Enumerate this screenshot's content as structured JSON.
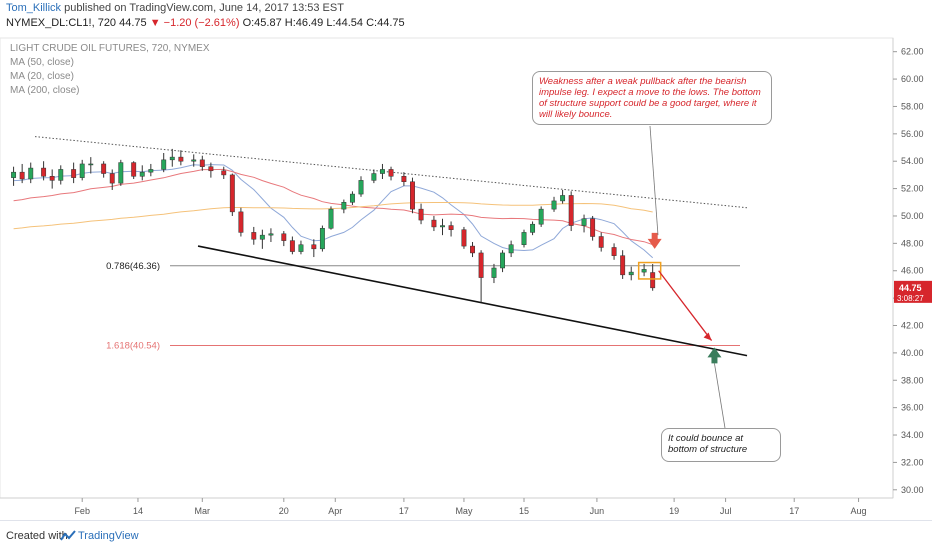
{
  "header": {
    "author": "Tom_Killick",
    "published": "published on TradingView.com, June 14, 2017 13:53 EST",
    "symbol": "NYMEX_DL:CL1!, 720",
    "last": "44.75",
    "change": "▼ −1.20 (−2.61%)",
    "ohlc": "O:45.87 H:46.49 L:44.54 C:44.75"
  },
  "legend": {
    "title": "LIGHT CRUDE OIL FUTURES, 720, NYMEX",
    "ma50": "MA (50, close)",
    "ma20": "MA (20, close)",
    "ma200": "MA (200, close)"
  },
  "annotations": {
    "top_note": "Weakness after a weak pullback after the bearish impulse leg. I expect a move to the lows. The bottom of structure support could be a good target, where it will likely bounce.",
    "bottom_note": "It could bounce at bottom of structure",
    "fib_786": "0.786(46.36)",
    "fib_1618": "1.618(40.54)"
  },
  "price_badge": {
    "price": "44.75",
    "countdown": "3:08:27",
    "color": "#d6262c"
  },
  "footer": {
    "created": "Created with",
    "brand": "TradingView"
  },
  "colors": {
    "up": "#26a65b",
    "down": "#d6262c",
    "ma20": "#8fa8d8",
    "ma50": "#e8787c",
    "ma200": "#f5c27a",
    "fib_1618": "#e57373",
    "fib_786": "#888888"
  },
  "chart_data": {
    "type": "candlestick",
    "y_axis": {
      "ylim": [
        29.4,
        63.0
      ],
      "ticks": [
        "62.00",
        "60.00",
        "58.00",
        "56.00",
        "54.00",
        "52.00",
        "50.00",
        "48.00",
        "46.00",
        "44.00",
        "42.00",
        "40.00",
        "38.00",
        "36.00",
        "34.00",
        "32.00",
        "30.00"
      ]
    },
    "x_axis": {
      "ticks": [
        "Feb",
        "14",
        "Mar",
        "20",
        "Apr",
        "17",
        "May",
        "15",
        "Jun",
        "19",
        "Jul",
        "17",
        "Aug"
      ]
    },
    "levels": [
      {
        "name": "0.786(46.36)",
        "value": 46.36
      },
      {
        "name": "1.618(40.54)",
        "value": 40.54
      }
    ],
    "trendlines": [
      {
        "name": "upper",
        "from": [
          "2017-01-21",
          55.8
        ],
        "to": [
          "2017-07-06",
          50.6
        ]
      },
      {
        "name": "lower",
        "from": [
          "2017-02-28",
          47.8
        ],
        "to": [
          "2017-07-06",
          39.8
        ]
      }
    ],
    "candles": [
      {
        "date": "2017-01-16",
        "o": 52.8,
        "h": 53.6,
        "l": 52.2,
        "c": 53.2
      },
      {
        "date": "2017-01-18",
        "o": 53.2,
        "h": 53.8,
        "l": 52.4,
        "c": 52.7
      },
      {
        "date": "2017-01-20",
        "o": 52.7,
        "h": 53.9,
        "l": 52.4,
        "c": 53.5
      },
      {
        "date": "2017-01-23",
        "o": 53.5,
        "h": 54.0,
        "l": 52.6,
        "c": 52.9
      },
      {
        "date": "2017-01-25",
        "o": 52.9,
        "h": 53.4,
        "l": 52.0,
        "c": 52.6
      },
      {
        "date": "2017-01-27",
        "o": 52.6,
        "h": 53.7,
        "l": 52.3,
        "c": 53.4
      },
      {
        "date": "2017-01-30",
        "o": 53.4,
        "h": 53.9,
        "l": 52.4,
        "c": 52.8
      },
      {
        "date": "2017-02-01",
        "o": 52.8,
        "h": 54.1,
        "l": 52.6,
        "c": 53.8
      },
      {
        "date": "2017-02-03",
        "o": 53.8,
        "h": 54.3,
        "l": 53.1,
        "c": 53.8
      },
      {
        "date": "2017-02-06",
        "o": 53.8,
        "h": 54.0,
        "l": 52.8,
        "c": 53.1
      },
      {
        "date": "2017-02-08",
        "o": 53.1,
        "h": 53.4,
        "l": 51.9,
        "c": 52.4
      },
      {
        "date": "2017-02-10",
        "o": 52.4,
        "h": 54.1,
        "l": 52.2,
        "c": 53.9
      },
      {
        "date": "2017-02-13",
        "o": 53.9,
        "h": 54.0,
        "l": 52.7,
        "c": 52.9
      },
      {
        "date": "2017-02-15",
        "o": 52.9,
        "h": 53.7,
        "l": 52.6,
        "c": 53.2
      },
      {
        "date": "2017-02-17",
        "o": 53.2,
        "h": 53.8,
        "l": 52.9,
        "c": 53.4
      },
      {
        "date": "2017-02-20",
        "o": 53.4,
        "h": 54.6,
        "l": 53.2,
        "c": 54.1
      },
      {
        "date": "2017-02-22",
        "o": 54.1,
        "h": 54.9,
        "l": 53.6,
        "c": 54.3
      },
      {
        "date": "2017-02-24",
        "o": 54.3,
        "h": 54.8,
        "l": 53.7,
        "c": 54.0
      },
      {
        "date": "2017-02-27",
        "o": 54.0,
        "h": 54.5,
        "l": 53.6,
        "c": 54.1
      },
      {
        "date": "2017-03-01",
        "o": 54.1,
        "h": 54.4,
        "l": 53.3,
        "c": 53.6
      },
      {
        "date": "2017-03-03",
        "o": 53.6,
        "h": 53.9,
        "l": 52.8,
        "c": 53.3
      },
      {
        "date": "2017-03-06",
        "o": 53.3,
        "h": 53.6,
        "l": 52.7,
        "c": 53.0
      },
      {
        "date": "2017-03-08",
        "o": 53.0,
        "h": 53.1,
        "l": 50.0,
        "c": 50.3
      },
      {
        "date": "2017-03-10",
        "o": 50.3,
        "h": 50.6,
        "l": 48.5,
        "c": 48.8
      },
      {
        "date": "2017-03-13",
        "o": 48.8,
        "h": 49.2,
        "l": 47.9,
        "c": 48.3
      },
      {
        "date": "2017-03-15",
        "o": 48.3,
        "h": 49.0,
        "l": 47.6,
        "c": 48.6
      },
      {
        "date": "2017-03-17",
        "o": 48.6,
        "h": 49.1,
        "l": 48.1,
        "c": 48.7
      },
      {
        "date": "2017-03-20",
        "o": 48.7,
        "h": 48.9,
        "l": 47.8,
        "c": 48.2
      },
      {
        "date": "2017-03-22",
        "o": 48.2,
        "h": 48.5,
        "l": 47.2,
        "c": 47.4
      },
      {
        "date": "2017-03-24",
        "o": 47.4,
        "h": 48.2,
        "l": 47.2,
        "c": 47.9
      },
      {
        "date": "2017-03-27",
        "o": 47.9,
        "h": 48.3,
        "l": 47.0,
        "c": 47.6
      },
      {
        "date": "2017-03-29",
        "o": 47.6,
        "h": 49.3,
        "l": 47.4,
        "c": 49.1
      },
      {
        "date": "2017-03-31",
        "o": 49.1,
        "h": 50.7,
        "l": 49.0,
        "c": 50.5
      },
      {
        "date": "2017-04-03",
        "o": 50.5,
        "h": 51.2,
        "l": 50.2,
        "c": 51.0
      },
      {
        "date": "2017-04-05",
        "o": 51.0,
        "h": 51.8,
        "l": 50.8,
        "c": 51.6
      },
      {
        "date": "2017-04-07",
        "o": 51.6,
        "h": 52.9,
        "l": 51.4,
        "c": 52.6
      },
      {
        "date": "2017-04-10",
        "o": 52.6,
        "h": 53.4,
        "l": 52.4,
        "c": 53.1
      },
      {
        "date": "2017-04-12",
        "o": 53.1,
        "h": 53.8,
        "l": 52.7,
        "c": 53.4
      },
      {
        "date": "2017-04-14",
        "o": 53.4,
        "h": 53.6,
        "l": 52.6,
        "c": 52.9
      },
      {
        "date": "2017-04-17",
        "o": 52.9,
        "h": 53.2,
        "l": 52.2,
        "c": 52.5
      },
      {
        "date": "2017-04-19",
        "o": 52.5,
        "h": 52.8,
        "l": 50.2,
        "c": 50.5
      },
      {
        "date": "2017-04-21",
        "o": 50.5,
        "h": 50.9,
        "l": 49.4,
        "c": 49.7
      },
      {
        "date": "2017-04-24",
        "o": 49.7,
        "h": 50.0,
        "l": 48.9,
        "c": 49.2
      },
      {
        "date": "2017-04-26",
        "o": 49.2,
        "h": 49.8,
        "l": 48.6,
        "c": 49.3
      },
      {
        "date": "2017-04-28",
        "o": 49.3,
        "h": 49.6,
        "l": 48.5,
        "c": 49.0
      },
      {
        "date": "2017-05-01",
        "o": 49.0,
        "h": 49.2,
        "l": 47.6,
        "c": 47.8
      },
      {
        "date": "2017-05-03",
        "o": 47.8,
        "h": 48.1,
        "l": 47.0,
        "c": 47.3
      },
      {
        "date": "2017-05-05",
        "o": 47.3,
        "h": 47.5,
        "l": 43.7,
        "c": 45.5
      },
      {
        "date": "2017-05-08",
        "o": 45.5,
        "h": 46.5,
        "l": 45.1,
        "c": 46.2
      },
      {
        "date": "2017-05-10",
        "o": 46.2,
        "h": 47.5,
        "l": 45.9,
        "c": 47.3
      },
      {
        "date": "2017-05-12",
        "o": 47.3,
        "h": 48.2,
        "l": 47.0,
        "c": 47.9
      },
      {
        "date": "2017-05-15",
        "o": 47.9,
        "h": 49.0,
        "l": 47.7,
        "c": 48.8
      },
      {
        "date": "2017-05-17",
        "o": 48.8,
        "h": 49.6,
        "l": 48.6,
        "c": 49.4
      },
      {
        "date": "2017-05-19",
        "o": 49.4,
        "h": 50.7,
        "l": 49.2,
        "c": 50.5
      },
      {
        "date": "2017-05-22",
        "o": 50.5,
        "h": 51.4,
        "l": 50.3,
        "c": 51.1
      },
      {
        "date": "2017-05-24",
        "o": 51.1,
        "h": 51.9,
        "l": 50.9,
        "c": 51.5
      },
      {
        "date": "2017-05-26",
        "o": 51.5,
        "h": 51.8,
        "l": 48.9,
        "c": 49.3
      },
      {
        "date": "2017-05-29",
        "o": 49.3,
        "h": 50.1,
        "l": 48.8,
        "c": 49.8
      },
      {
        "date": "2017-05-31",
        "o": 49.8,
        "h": 50.0,
        "l": 48.2,
        "c": 48.5
      },
      {
        "date": "2017-06-02",
        "o": 48.5,
        "h": 48.8,
        "l": 47.4,
        "c": 47.7
      },
      {
        "date": "2017-06-05",
        "o": 47.7,
        "h": 48.0,
        "l": 46.8,
        "c": 47.1
      },
      {
        "date": "2017-06-07",
        "o": 47.1,
        "h": 47.5,
        "l": 45.4,
        "c": 45.7
      },
      {
        "date": "2017-06-09",
        "o": 45.7,
        "h": 46.3,
        "l": 45.3,
        "c": 45.9
      },
      {
        "date": "2017-06-12",
        "o": 45.9,
        "h": 46.5,
        "l": 45.6,
        "c": 46.1
      },
      {
        "date": "2017-06-14",
        "o": 45.87,
        "h": 46.49,
        "l": 44.54,
        "c": 44.75
      }
    ]
  }
}
